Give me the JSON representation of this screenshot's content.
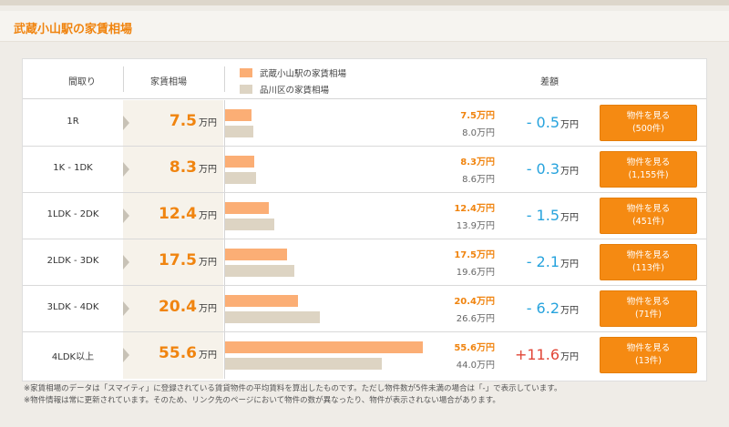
{
  "page": {
    "title": "武蔵小山駅の家賃相場"
  },
  "table": {
    "headers": {
      "madori": "間取り",
      "soba": "家賃相場",
      "sagaku": "差額"
    },
    "legend": {
      "local": "武蔵小山駅の家賃相場",
      "ward": "品川区の家賃相場"
    },
    "unit": "万円",
    "scale_max": 55.6,
    "rows": [
      {
        "madori": "1R",
        "soba": "7.5",
        "local": 7.5,
        "ward": 8.0,
        "local_text": "7.5万円",
        "ward_text": "8.0万円",
        "diff": "- 0.5",
        "diff_sign": "neg",
        "button_line1": "物件を見る",
        "button_line2": "(500件)"
      },
      {
        "madori": "1K - 1DK",
        "soba": "8.3",
        "local": 8.3,
        "ward": 8.6,
        "local_text": "8.3万円",
        "ward_text": "8.6万円",
        "diff": "- 0.3",
        "diff_sign": "neg",
        "button_line1": "物件を見る",
        "button_line2": "(1,155件)"
      },
      {
        "madori": "1LDK - 2DK",
        "soba": "12.4",
        "local": 12.4,
        "ward": 13.9,
        "local_text": "12.4万円",
        "ward_text": "13.9万円",
        "diff": "- 1.5",
        "diff_sign": "neg",
        "button_line1": "物件を見る",
        "button_line2": "(451件)"
      },
      {
        "madori": "2LDK - 3DK",
        "soba": "17.5",
        "local": 17.5,
        "ward": 19.6,
        "local_text": "17.5万円",
        "ward_text": "19.6万円",
        "diff": "- 2.1",
        "diff_sign": "neg",
        "button_line1": "物件を見る",
        "button_line2": "(113件)"
      },
      {
        "madori": "3LDK - 4DK",
        "soba": "20.4",
        "local": 20.4,
        "ward": 26.6,
        "local_text": "20.4万円",
        "ward_text": "26.6万円",
        "diff": "- 6.2",
        "diff_sign": "neg",
        "button_line1": "物件を見る",
        "button_line2": "(71件)"
      },
      {
        "madori": "4LDK以上",
        "soba": "55.6",
        "local": 55.6,
        "ward": 44.0,
        "local_text": "55.6万円",
        "ward_text": "44.0万円",
        "diff": "+11.6",
        "diff_sign": "pos",
        "button_line1": "物件を見る",
        "button_line2": "(13件)"
      }
    ]
  },
  "notes": [
    "※家賃相場のデータは「スマイティ」に登録されている賃貸物件の平均賃料を算出したものです。ただし物件数が5件未満の場合は「-」で表示しています。",
    "※物件情報は常に更新されています。そのため、リンク先のページにおいて物件の数が異なったり、物件が表示されない場合があります。"
  ],
  "colors": {
    "accent": "#f0840f",
    "button": "#f58a12",
    "bar_local": "#fbae75",
    "bar_ward": "#ddd4c3",
    "diff_negative": "#27a3dd",
    "diff_positive": "#e14536"
  }
}
